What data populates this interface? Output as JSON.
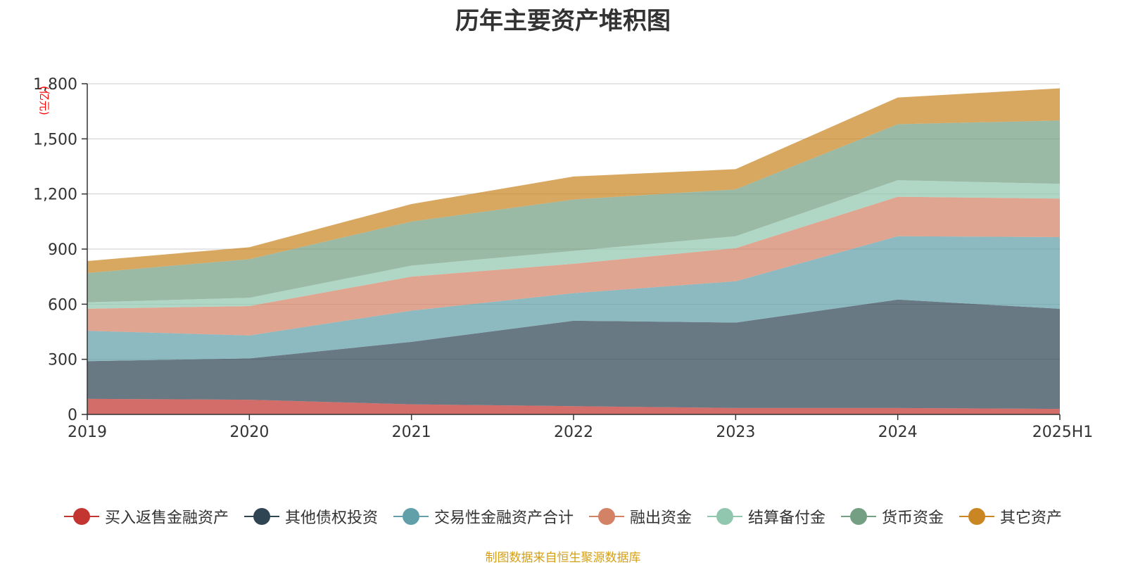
{
  "title": "历年主要资产堆积图",
  "source_note": "制图数据来自恒生聚源数据库",
  "colors": {
    "title": "#333333",
    "axis": "#333333",
    "grid": "#cccccc",
    "unit": "#ff0000",
    "source": "#d4a017"
  },
  "chart_data": {
    "type": "area",
    "stacked": true,
    "unit_label": "(亿元)",
    "x": [
      "2019",
      "2020",
      "2021",
      "2022",
      "2023",
      "2024",
      "2025H1"
    ],
    "ylim": [
      0,
      1800
    ],
    "yticks": [
      0,
      300,
      600,
      900,
      1200,
      1500,
      1800
    ],
    "ytick_labels": [
      "0",
      "300",
      "600",
      "900",
      "1,200",
      "1,500",
      "1,800"
    ],
    "grid": true,
    "legend_position": "bottom",
    "series": [
      {
        "name": "买入返售金融资产",
        "color": "#c23531",
        "values": [
          85,
          80,
          55,
          45,
          35,
          35,
          30
        ]
      },
      {
        "name": "其他债权投资",
        "color": "#2f4554",
        "values": [
          205,
          225,
          340,
          465,
          465,
          590,
          545
        ]
      },
      {
        "name": "交易性金融资产合计",
        "color": "#61a0a8",
        "values": [
          165,
          125,
          170,
          150,
          225,
          345,
          390
        ]
      },
      {
        "name": "融出资金",
        "color": "#d48265",
        "values": [
          120,
          160,
          185,
          160,
          180,
          215,
          210
        ]
      },
      {
        "name": "结算备付金",
        "color": "#91c7ae",
        "values": [
          35,
          45,
          60,
          70,
          65,
          90,
          80
        ]
      },
      {
        "name": "货币资金",
        "color": "#749f83",
        "values": [
          160,
          210,
          240,
          280,
          255,
          305,
          345
        ]
      },
      {
        "name": "其它资产",
        "color": "#ca8622",
        "values": [
          65,
          65,
          95,
          125,
          110,
          145,
          175
        ]
      }
    ]
  }
}
